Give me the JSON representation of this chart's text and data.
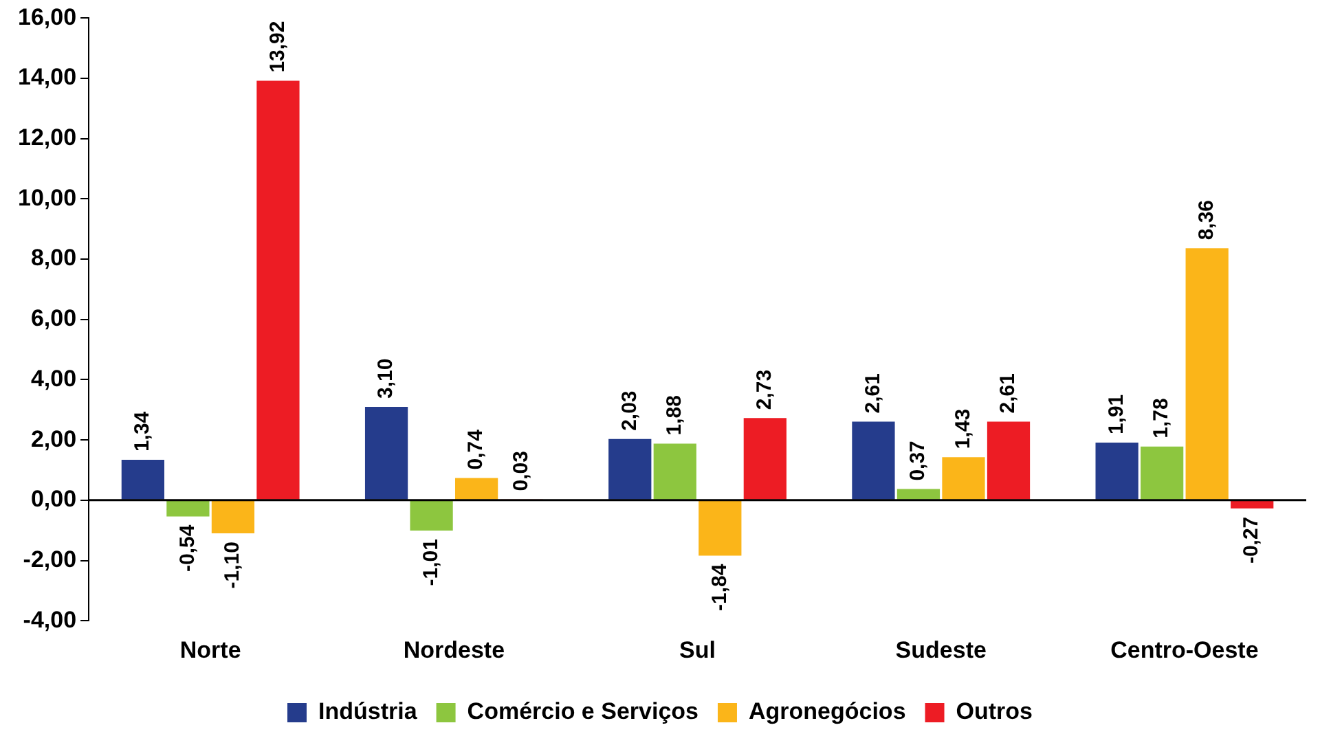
{
  "chart_data": {
    "type": "bar",
    "categories": [
      "Norte",
      "Nordeste",
      "Sul",
      "Sudeste",
      "Centro-Oeste"
    ],
    "series": [
      {
        "name": "Indústria",
        "color": "#253c8c",
        "values": [
          1.34,
          3.1,
          2.03,
          2.61,
          1.91
        ],
        "value_labels": [
          "1,34",
          "3,10",
          "2,03",
          "2,61",
          "1,91"
        ]
      },
      {
        "name": "Comércio e Serviços",
        "color": "#8dc63f",
        "values": [
          -0.54,
          -1.01,
          1.88,
          0.37,
          1.78
        ],
        "value_labels": [
          "-0,54",
          "-1,01",
          "1,88",
          "0,37",
          "1,78"
        ]
      },
      {
        "name": "Agronegócios",
        "color": "#fbb519",
        "values": [
          -1.1,
          0.74,
          -1.84,
          1.43,
          8.36
        ],
        "value_labels": [
          "-1,10",
          "0,74",
          "-1,84",
          "1,43",
          "8,36"
        ]
      },
      {
        "name": "Outros",
        "color": "#ed1c24",
        "values": [
          13.92,
          0.03,
          2.73,
          2.61,
          -0.27
        ],
        "value_labels": [
          "13,92",
          "0,03",
          "2,73",
          "2,61",
          "-0,27"
        ]
      }
    ],
    "ylim": [
      -4,
      16
    ],
    "yticks": [
      {
        "value": -4,
        "label": "-4,00"
      },
      {
        "value": -2,
        "label": "-2,00"
      },
      {
        "value": 0,
        "label": "0,00"
      },
      {
        "value": 2,
        "label": "2,00"
      },
      {
        "value": 4,
        "label": "4,00"
      },
      {
        "value": 6,
        "label": "6,00"
      },
      {
        "value": 8,
        "label": "8,00"
      },
      {
        "value": 10,
        "label": "10,00"
      },
      {
        "value": 12,
        "label": "12,00"
      },
      {
        "value": 14,
        "label": "14,00"
      },
      {
        "value": 16,
        "label": "16,00"
      }
    ],
    "ref_lines": [
      {
        "axis": "y",
        "value": 0,
        "color": "#000000"
      }
    ],
    "grid": false,
    "legend": "bottom"
  }
}
